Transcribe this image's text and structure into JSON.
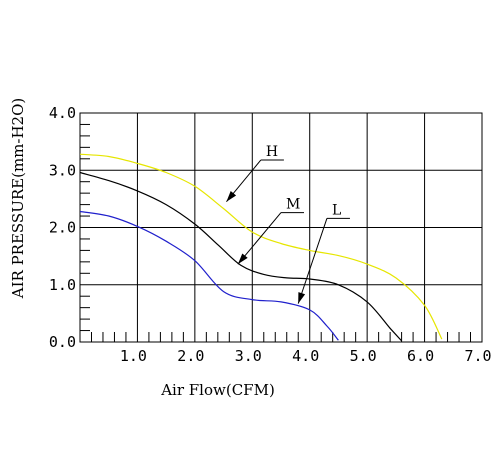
{
  "chart_data": {
    "type": "line",
    "xlabel": "Air Flow(CFM)",
    "ylabel": "AIR PRESSURE(mm-H2O)",
    "xlim": [
      0,
      7
    ],
    "ylim": [
      0,
      4
    ],
    "x_ticks": [
      "1.0",
      "2.0",
      "3.0",
      "4.0",
      "5.0",
      "6.0",
      "7.0"
    ],
    "y_ticks": [
      "0.0",
      "1.0",
      "2.0",
      "3.0",
      "4.0"
    ],
    "grid": true,
    "series": [
      {
        "name": "H",
        "color": "#e6e600",
        "points": [
          [
            0,
            3.28
          ],
          [
            0.5,
            3.24
          ],
          [
            1.0,
            3.12
          ],
          [
            1.5,
            2.96
          ],
          [
            2.0,
            2.72
          ],
          [
            2.5,
            2.33
          ],
          [
            3.0,
            1.92
          ],
          [
            3.5,
            1.72
          ],
          [
            4.0,
            1.6
          ],
          [
            4.5,
            1.51
          ],
          [
            5.0,
            1.36
          ],
          [
            5.5,
            1.12
          ],
          [
            6.0,
            0.64
          ],
          [
            6.3,
            0.05
          ]
        ]
      },
      {
        "name": "M",
        "color": "#000000",
        "points": [
          [
            0,
            2.96
          ],
          [
            0.5,
            2.82
          ],
          [
            1.0,
            2.64
          ],
          [
            1.5,
            2.4
          ],
          [
            2.0,
            2.06
          ],
          [
            2.4,
            1.7
          ],
          [
            2.8,
            1.34
          ],
          [
            3.2,
            1.18
          ],
          [
            3.6,
            1.12
          ],
          [
            4.0,
            1.1
          ],
          [
            4.5,
            1.0
          ],
          [
            5.0,
            0.7
          ],
          [
            5.4,
            0.24
          ],
          [
            5.6,
            0.02
          ]
        ]
      },
      {
        "name": "L",
        "color": "#2020cc",
        "points": [
          [
            0,
            2.28
          ],
          [
            0.5,
            2.2
          ],
          [
            1.0,
            2.02
          ],
          [
            1.5,
            1.76
          ],
          [
            2.0,
            1.42
          ],
          [
            2.5,
            0.88
          ],
          [
            3.0,
            0.74
          ],
          [
            3.5,
            0.7
          ],
          [
            4.0,
            0.56
          ],
          [
            4.3,
            0.28
          ],
          [
            4.5,
            0.03
          ]
        ]
      }
    ],
    "annotations": [
      {
        "label": "H",
        "text_at": [
          3.15,
          3.18
        ],
        "arrow_to": [
          2.55,
          2.45
        ]
      },
      {
        "label": "M",
        "text_at": [
          3.5,
          2.26
        ],
        "arrow_to": [
          2.75,
          1.36
        ]
      },
      {
        "label": "L",
        "text_at": [
          4.3,
          2.16
        ],
        "arrow_to": [
          3.8,
          0.67
        ]
      }
    ]
  }
}
